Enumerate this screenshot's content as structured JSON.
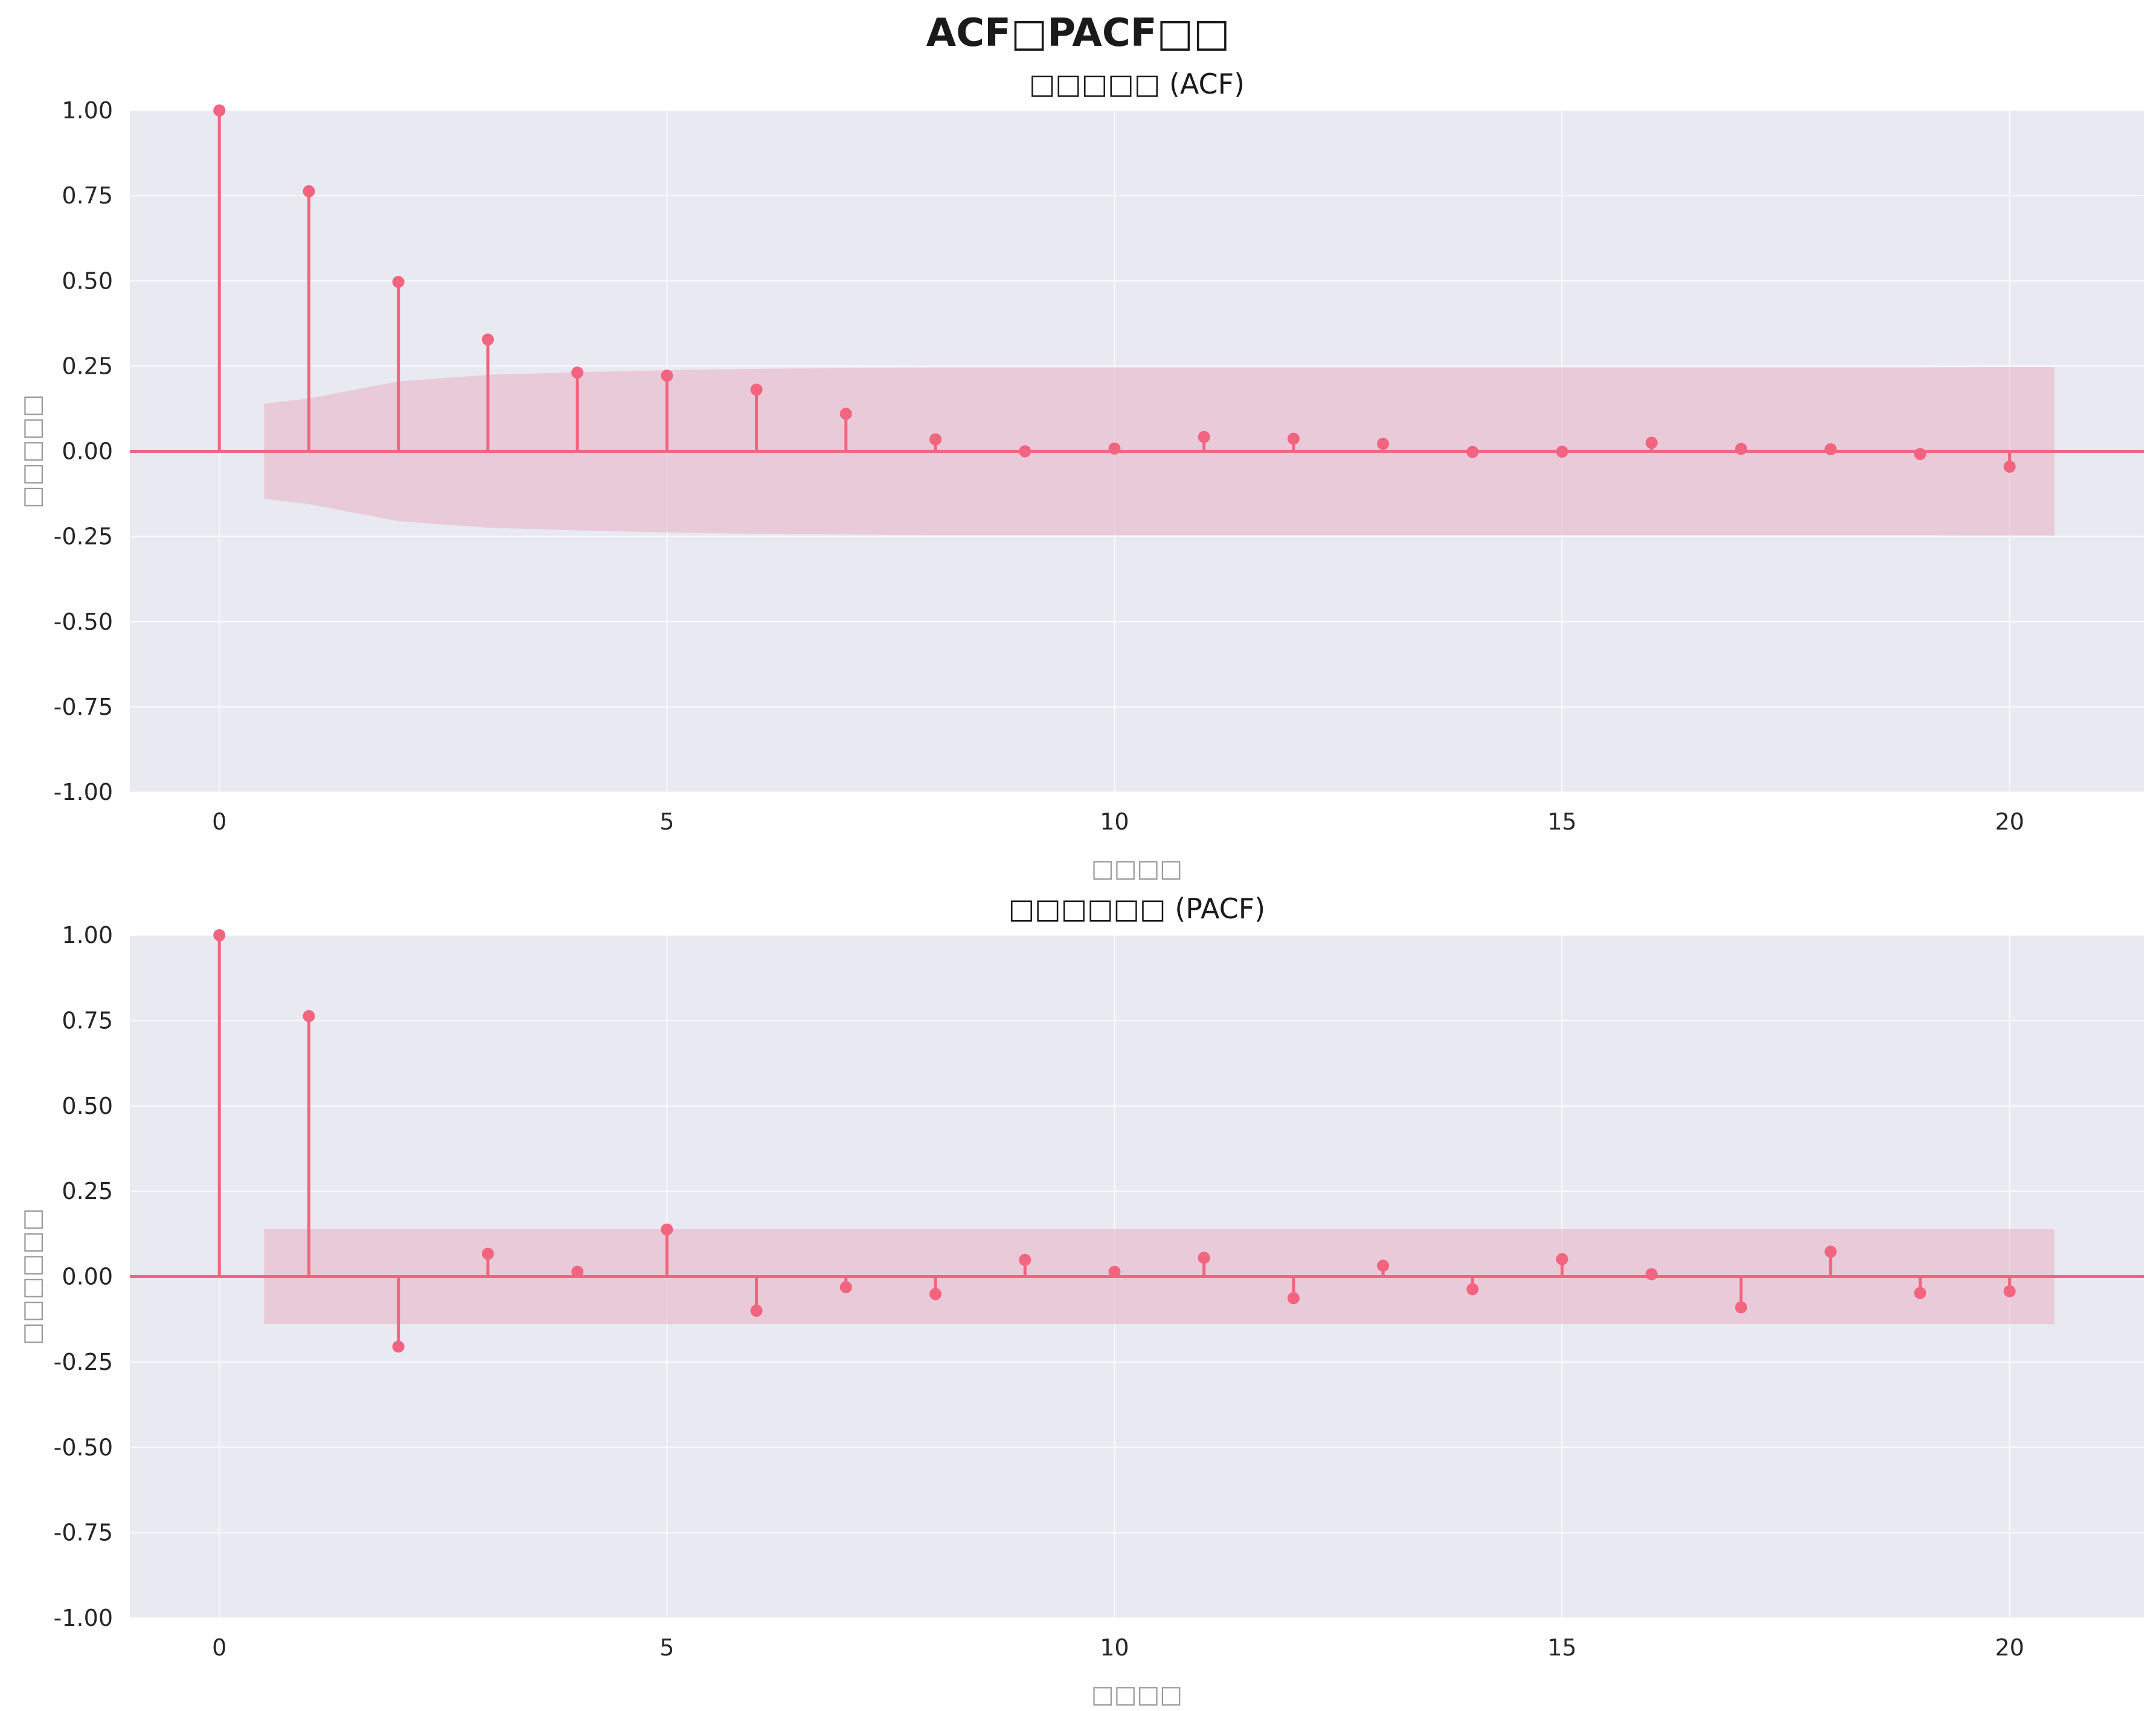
{
  "figure": {
    "suptitle": "ACF□PACF□□"
  },
  "colors": {
    "stem": "#f2647f",
    "band": "#e8b0c4",
    "axes_bg": "#e9e9f1",
    "grid": "#ffffff",
    "tofu": "#9a9a9a"
  },
  "chart_data": [
    {
      "type": "stem",
      "title": "□□□□□ (ACF)",
      "xlabel": "□□□□",
      "ylabel": "□□□□□",
      "xlim": [
        -1.0,
        21.5
      ],
      "ylim": [
        -1.0,
        1.0
      ],
      "xticks": [
        0,
        5,
        10,
        15,
        20
      ],
      "yticks": [
        1.0,
        0.75,
        0.5,
        0.25,
        0.0,
        -0.25,
        -0.5,
        -0.75,
        -1.0
      ],
      "ytick_labels": [
        "1.00",
        "0.75",
        "0.50",
        "0.25",
        "0.00",
        "-0.25",
        "-0.50",
        "-0.75",
        "-1.00"
      ],
      "lags": [
        0,
        1,
        2,
        3,
        4,
        5,
        6,
        7,
        8,
        9,
        10,
        11,
        12,
        13,
        14,
        15,
        16,
        17,
        18,
        19,
        20
      ],
      "values": [
        1.0,
        0.763,
        0.497,
        0.328,
        0.231,
        0.222,
        0.181,
        0.11,
        0.035,
        0.0,
        0.008,
        0.042,
        0.037,
        0.022,
        -0.002,
        -0.001,
        0.025,
        0.007,
        0.006,
        -0.008,
        -0.045
      ],
      "confidence_band": {
        "x": [
          0.5,
          1,
          2,
          3,
          4,
          5,
          6,
          7,
          8,
          9,
          10,
          11,
          12,
          13,
          14,
          15,
          16,
          17,
          18,
          19,
          20,
          20.5
        ],
        "upper": [
          0.139,
          0.155,
          0.205,
          0.224,
          0.232,
          0.238,
          0.242,
          0.244,
          0.246,
          0.246,
          0.246,
          0.246,
          0.246,
          0.246,
          0.246,
          0.246,
          0.246,
          0.246,
          0.246,
          0.246,
          0.247,
          0.247
        ]
      }
    },
    {
      "type": "stem",
      "title": "□□□□□□ (PACF)",
      "xlabel": "□□□□",
      "ylabel": "□□□□□□",
      "xlim": [
        -1.0,
        21.5
      ],
      "ylim": [
        -1.0,
        1.0
      ],
      "xticks": [
        0,
        5,
        10,
        15,
        20
      ],
      "yticks": [
        1.0,
        0.75,
        0.5,
        0.25,
        0.0,
        -0.25,
        -0.5,
        -0.75,
        -1.0
      ],
      "ytick_labels": [
        "1.00",
        "0.75",
        "0.50",
        "0.25",
        "0.00",
        "-0.25",
        "-0.50",
        "-0.75",
        "-1.00"
      ],
      "lags": [
        0,
        1,
        2,
        3,
        4,
        5,
        6,
        7,
        8,
        9,
        10,
        11,
        12,
        13,
        14,
        15,
        16,
        17,
        18,
        19,
        20
      ],
      "values": [
        1.0,
        0.763,
        -0.205,
        0.067,
        0.014,
        0.138,
        -0.1,
        -0.031,
        -0.051,
        0.049,
        0.014,
        0.055,
        -0.063,
        0.032,
        -0.037,
        0.051,
        0.007,
        -0.09,
        0.073,
        -0.048,
        -0.043
      ],
      "confidence_band": {
        "x": [
          0.5,
          20.5
        ],
        "upper": [
          0.139,
          0.139
        ]
      }
    }
  ]
}
